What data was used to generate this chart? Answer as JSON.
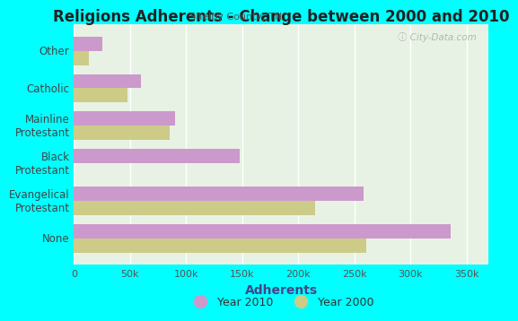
{
  "title": "Religions Adherents - Change between 2000 and 2010",
  "subtitle": "Shelby County, TN",
  "xlabel": "Adherents",
  "background_color": "#00FFFF",
  "plot_bg_color": "#e8f2e4",
  "categories": [
    "None",
    "Evangelical\nProtestant",
    "Black\nProtestant",
    "Mainline\nProtestant",
    "Catholic",
    "Other"
  ],
  "values_2010": [
    336000,
    258000,
    148000,
    90000,
    60000,
    25000
  ],
  "values_2000": [
    261000,
    215000,
    0,
    85000,
    48000,
    13000
  ],
  "color_2010": "#cc99cc",
  "color_2000": "#cccc88",
  "bar_height": 0.38,
  "xlim": [
    0,
    370000
  ],
  "xticks": [
    0,
    50000,
    100000,
    150000,
    200000,
    250000,
    300000,
    350000
  ],
  "xtick_labels": [
    "0",
    "50k",
    "100k",
    "150k",
    "200k",
    "250k",
    "300k",
    "350k"
  ],
  "watermark": "ⓘ City-Data.com"
}
